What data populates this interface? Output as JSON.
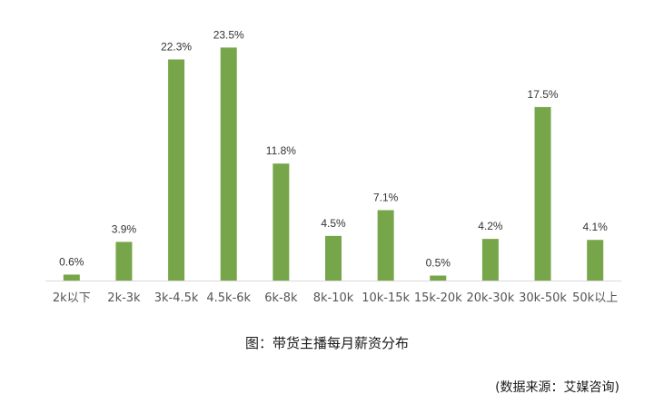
{
  "chart_data": {
    "type": "bar",
    "categories": [
      "2k以下",
      "2k-3k",
      "3k-4.5k",
      "4.5k-6k",
      "6k-8k",
      "8k-10k",
      "10k-15k",
      "15k-20k",
      "20k-30k",
      "30k-50k",
      "50k以上"
    ],
    "values": [
      0.6,
      3.9,
      22.3,
      23.5,
      11.8,
      4.5,
      7.1,
      0.5,
      4.2,
      17.5,
      4.1
    ],
    "value_labels": [
      "0.6%",
      "3.9%",
      "22.3%",
      "23.5%",
      "11.8%",
      "4.5%",
      "7.1%",
      "0.5%",
      "4.2%",
      "17.5%",
      "4.1%"
    ],
    "title": "",
    "xlabel": "",
    "ylabel": "",
    "ylim": [
      0,
      25
    ],
    "grid": false,
    "legend": "none",
    "bar_color": "#77a64a",
    "axis_color": "#d9d9d9"
  },
  "caption": "图：带货主播每月薪资分布",
  "source": "(数据来源：艾媒咨询)"
}
